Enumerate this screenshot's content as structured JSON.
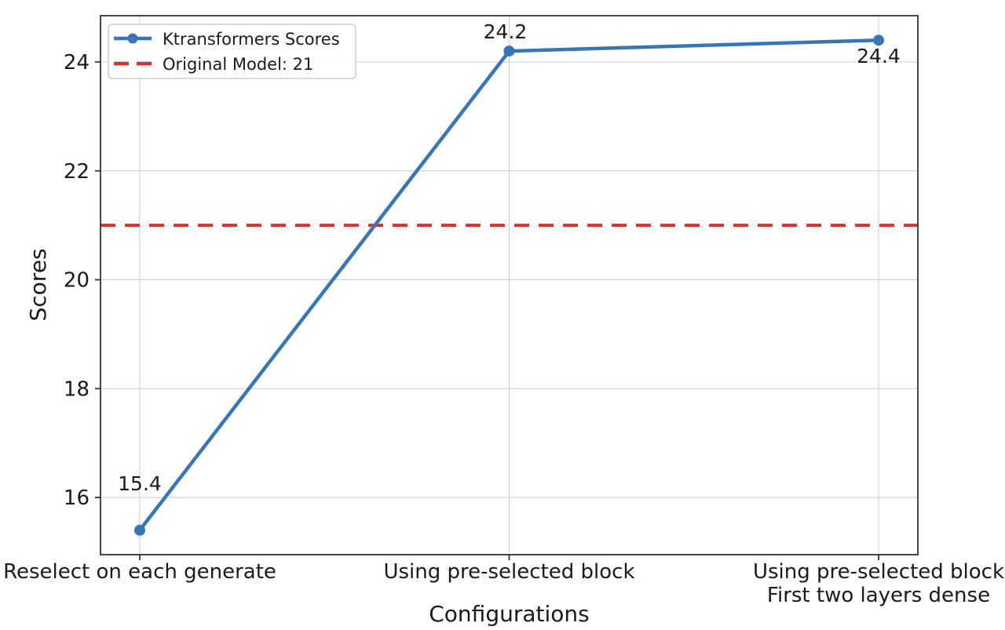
{
  "figure": {
    "background_color": "#ffffff",
    "text_color": "#1a1a1a",
    "grid_color": "#cccccc",
    "spine_color": "#333333"
  },
  "chart_data": {
    "type": "line",
    "title": "",
    "xlabel": "Configurations",
    "ylabel": "Scores",
    "categories": [
      "Reselect on each generate",
      "Using pre-selected block",
      "Using pre-selected block\nFirst two layers dense"
    ],
    "series": [
      {
        "name": "Ktransformers Scores",
        "values": [
          15.4,
          24.2,
          24.4
        ],
        "color": "#3776b4",
        "marker": "circle",
        "line_style": "solid"
      }
    ],
    "reference_line": {
      "name": "Original Model: 21",
      "value": 21,
      "color": "#e02d26",
      "line_style": "dashed"
    },
    "data_labels": [
      "15.4",
      "24.2",
      "24.4"
    ],
    "yticks": [
      16,
      18,
      20,
      22,
      24
    ],
    "ylim": [
      14.95,
      24.85
    ],
    "grid": true,
    "legend": {
      "position": "upper left",
      "entries": [
        "Ktransformers Scores",
        "Original Model: 21"
      ]
    }
  }
}
